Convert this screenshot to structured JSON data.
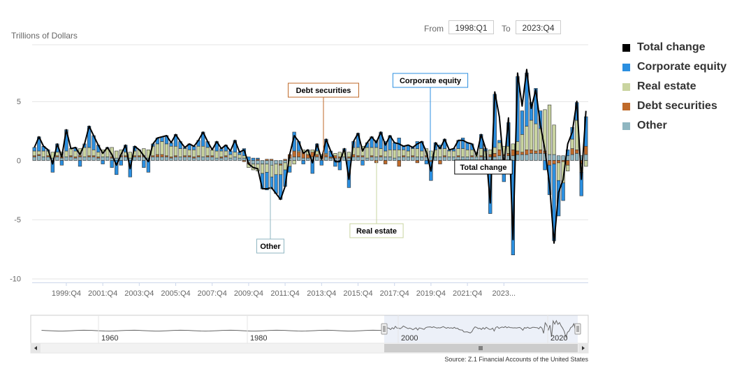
{
  "range_selector": {
    "from_label": "From",
    "from_value": "1998:Q1",
    "to_label": "To",
    "to_value": "2023:Q4"
  },
  "legend": [
    {
      "name": "Total change",
      "color": "#000000"
    },
    {
      "name": "Corporate equity",
      "color": "#2b8fe0"
    },
    {
      "name": "Real estate",
      "color": "#c9d4a0"
    },
    {
      "name": "Debt securities",
      "color": "#bf6a2a"
    },
    {
      "name": "Other",
      "color": "#8fb6c1"
    }
  ],
  "source": "Source: Z.1 Financial Accounts of the United States",
  "chart_data": {
    "type": "bar",
    "stacked": true,
    "ylabel": "Trillions of Dollars",
    "ylim": [
      -10,
      10
    ],
    "y_ticks": [
      5,
      0,
      -5,
      -10
    ],
    "x_tick_labels": [
      "1999:Q4",
      "2001:Q4",
      "2003:Q4",
      "2005:Q4",
      "2007:Q4",
      "2009:Q4",
      "2011:Q4",
      "2013:Q4",
      "2015:Q4",
      "2017:Q4",
      "2019:Q4",
      "2021:Q4",
      "2023..."
    ],
    "x_start": "1998:Q1",
    "x_end": "2023:Q4",
    "series_order": [
      "Other",
      "Debt securities",
      "Real estate",
      "Corporate equity"
    ],
    "series": [
      {
        "name": "Corporate equity",
        "values": [
          0.3,
          1.2,
          0.4,
          0.1,
          -1.0,
          0.7,
          -0.4,
          1.8,
          0.0,
          0.3,
          -0.5,
          0.3,
          1.8,
          1.2,
          0.6,
          -0.3,
          0.1,
          -0.6,
          -1.2,
          -0.4,
          0.6,
          -1.4,
          0.4,
          0.0,
          -0.6,
          -1.0,
          0.2,
          0.5,
          0.4,
          0.7,
          0.3,
          1.0,
          0.6,
          0.1,
          0.5,
          0.3,
          0.5,
          1.2,
          0.5,
          0.0,
          0.8,
          0.2,
          0.5,
          0.3,
          1.0,
          0.2,
          0.6,
          0.3,
          0.2,
          0.1,
          -1.3,
          -1.5,
          -1.0,
          -1.6,
          -2.1,
          -1.4,
          -0.5,
          1.6,
          0.8,
          -0.3,
          0.1,
          -1.1,
          0.6,
          -0.4,
          1.2,
          0.5,
          -0.5,
          -0.8,
          0.2,
          -2.3,
          0.5,
          1.2,
          -0.4,
          0.4,
          0.9,
          0.6,
          1.4,
          0.8,
          1.2,
          0.6,
          1.0,
          0.3,
          0.5,
          0.1,
          0.6,
          0.8,
          -0.3,
          -1.6,
          0.6,
          0.3,
          0.8,
          0.1,
          0.2,
          0.7,
          0.9,
          0.6,
          0.5,
          -0.3,
          1.2,
          0.2,
          -4.5,
          4.5,
          0.2,
          -1.8,
          2.0,
          -8.0,
          5.5,
          2.0,
          4.5,
          1.5,
          3.0,
          1.5,
          -0.8,
          -2.5,
          -6.5,
          -3.0,
          -1.5,
          0.5,
          1.0,
          1.5,
          -2.0,
          2.5
        ],
        "color": "#2b8fe0"
      },
      {
        "name": "Real estate",
        "values": [
          0.4,
          0.3,
          0.5,
          0.4,
          0.5,
          0.3,
          0.4,
          0.5,
          0.6,
          0.5,
          0.6,
          0.8,
          0.7,
          0.5,
          0.4,
          0.6,
          0.7,
          0.8,
          0.6,
          0.5,
          0.3,
          0.5,
          0.4,
          0.5,
          0.6,
          0.7,
          0.8,
          0.9,
          1.1,
          1.0,
          0.9,
          0.8,
          0.7,
          0.6,
          0.5,
          0.6,
          0.8,
          0.9,
          0.7,
          0.5,
          0.6,
          0.5,
          0.4,
          0.3,
          0.4,
          0.3,
          0.2,
          -0.3,
          -0.5,
          -0.6,
          -0.8,
          -0.7,
          -1.0,
          -0.9,
          -0.8,
          -0.6,
          -0.5,
          -0.3,
          0.1,
          0.2,
          0.3,
          0.2,
          0.3,
          0.2,
          0.1,
          0.0,
          0.2,
          0.4,
          0.5,
          0.4,
          0.6,
          0.7,
          0.8,
          0.9,
          0.7,
          0.8,
          0.6,
          0.5,
          0.6,
          0.7,
          0.6,
          0.5,
          0.5,
          0.6,
          0.7,
          0.5,
          0.6,
          0.5,
          0.6,
          0.7,
          0.6,
          0.5,
          0.5,
          0.6,
          0.7,
          0.6,
          0.5,
          0.4,
          0.6,
          0.5,
          0.4,
          0.5,
          0.6,
          0.7,
          0.6,
          0.5,
          0.8,
          1.5,
          2.0,
          2.5,
          2.3,
          1.8,
          3.5,
          4.2,
          2.5,
          -1.5,
          -1.8,
          -0.5,
          0.8,
          2.5,
          -0.7,
          -0.5
        ],
        "color": "#c9d4a0"
      },
      {
        "name": "Debt securities",
        "values": [
          0.1,
          0.1,
          0.0,
          0.1,
          0.0,
          0.1,
          0.1,
          0.0,
          0.1,
          0.1,
          0.1,
          0.0,
          0.1,
          0.1,
          0.1,
          0.0,
          0.0,
          0.1,
          0.0,
          0.1,
          0.1,
          0.0,
          0.1,
          0.1,
          0.1,
          0.0,
          0.1,
          0.2,
          0.2,
          0.1,
          0.1,
          0.1,
          0.0,
          0.1,
          0.1,
          0.1,
          0.1,
          0.0,
          0.1,
          0.1,
          0.0,
          0.1,
          0.1,
          0.0,
          0.0,
          0.0,
          -0.1,
          -0.1,
          0.0,
          0.1,
          0.0,
          0.1,
          0.1,
          0.0,
          -0.1,
          0.1,
          0.3,
          0.5,
          0.4,
          0.5,
          0.3,
          0.4,
          0.2,
          0.1,
          0.2,
          0.1,
          0.2,
          0.1,
          0.0,
          0.1,
          0.2,
          0.1,
          0.1,
          0.0,
          0.1,
          -0.2,
          0.1,
          -0.3,
          0.0,
          0.0,
          -0.5,
          0.1,
          0.0,
          0.1,
          -0.2,
          0.0,
          0.1,
          -0.1,
          0.0,
          -0.3,
          0.1,
          0.0,
          0.0,
          0.1,
          -0.2,
          0.0,
          0.1,
          0.0,
          0.1,
          0.0,
          0.2,
          0.3,
          0.5,
          0.1,
          0.2,
          0.5,
          0.3,
          0.2,
          0.4,
          0.3,
          0.2,
          0.3,
          0.2,
          -0.4,
          -0.3,
          -0.2,
          -0.1,
          -0.4,
          0.5,
          0.3,
          -0.3,
          0.7
        ],
        "color": "#bf6a2a"
      },
      {
        "name": "Other",
        "values": [
          0.3,
          0.4,
          0.3,
          0.3,
          0.2,
          0.3,
          0.2,
          0.3,
          0.3,
          0.2,
          0.3,
          0.3,
          0.3,
          0.3,
          0.2,
          0.3,
          0.3,
          0.2,
          0.2,
          0.3,
          0.3,
          0.2,
          0.3,
          0.3,
          0.3,
          0.2,
          0.3,
          0.3,
          0.3,
          0.3,
          0.2,
          0.3,
          0.3,
          0.3,
          0.3,
          0.2,
          0.3,
          0.3,
          0.3,
          0.3,
          0.2,
          0.2,
          0.3,
          0.2,
          0.3,
          0.2,
          0.2,
          -0.2,
          -0.3,
          -0.3,
          -0.3,
          -0.3,
          -0.4,
          -0.3,
          -0.3,
          -0.2,
          0.2,
          0.3,
          0.3,
          0.2,
          0.2,
          0.3,
          0.3,
          0.2,
          0.3,
          0.2,
          0.2,
          0.2,
          0.3,
          0.2,
          0.3,
          0.3,
          0.3,
          0.2,
          0.3,
          0.3,
          0.3,
          0.3,
          0.3,
          0.2,
          0.3,
          0.3,
          0.3,
          0.3,
          0.3,
          0.3,
          0.3,
          0.3,
          0.3,
          0.3,
          0.3,
          0.3,
          0.3,
          0.3,
          0.3,
          0.3,
          0.3,
          0.3,
          0.3,
          0.3,
          0.3,
          0.3,
          0.4,
          0.4,
          0.4,
          0.4,
          0.5,
          0.5,
          0.5,
          0.6,
          0.6,
          0.6,
          0.6,
          0.5,
          0.5,
          0.4,
          0.4,
          0.4,
          0.5,
          0.6,
          0.4,
          0.5
        ],
        "color": "#8fb6c1"
      },
      {
        "name": "Total change",
        "type": "line",
        "values": [
          1.1,
          2.0,
          1.2,
          0.9,
          -0.3,
          1.4,
          0.3,
          2.6,
          1.0,
          1.1,
          0.5,
          1.4,
          2.9,
          2.1,
          1.3,
          0.6,
          1.1,
          0.5,
          -0.4,
          0.5,
          1.3,
          -0.7,
          1.2,
          0.9,
          0.4,
          -0.1,
          1.4,
          1.9,
          2.0,
          2.1,
          1.5,
          2.2,
          1.6,
          1.1,
          1.4,
          1.2,
          1.7,
          2.4,
          1.6,
          0.9,
          1.6,
          1.0,
          1.3,
          0.8,
          1.7,
          0.7,
          0.9,
          -0.3,
          -0.6,
          -0.7,
          -2.4,
          -2.4,
          -2.3,
          -2.8,
          -3.3,
          -2.2,
          0.5,
          2.1,
          1.6,
          0.6,
          0.9,
          -0.2,
          1.4,
          0.1,
          1.8,
          0.8,
          -0.1,
          -0.1,
          1.0,
          -1.6,
          1.6,
          2.3,
          0.8,
          1.5,
          2.0,
          1.5,
          2.4,
          1.3,
          2.1,
          1.5,
          1.4,
          1.2,
          1.3,
          1.1,
          1.4,
          1.6,
          0.7,
          -0.9,
          1.5,
          1.0,
          1.8,
          0.9,
          1.0,
          1.7,
          1.7,
          1.5,
          1.4,
          0.4,
          2.2,
          1.0,
          -3.6,
          5.8,
          3.7,
          -0.6,
          3.6,
          -6.7,
          7.4,
          4.6,
          7.7,
          4.4,
          6.0,
          3.0,
          0.9,
          -2.0,
          -7.0,
          -2.7,
          -1.6,
          1.4,
          2.4,
          5.0,
          -1.6,
          4.2
        ],
        "color": "#000000"
      }
    ],
    "annotations": [
      {
        "text": "Debt securities",
        "series": "Debt securities",
        "index": 55
      },
      {
        "text": "Corporate equity",
        "series": "Corporate equity",
        "index": 80
      },
      {
        "text": "Total change",
        "series": "Total change",
        "index": 93
      },
      {
        "text": "Real estate",
        "series": "Real estate",
        "index": 70
      },
      {
        "text": "Other",
        "series": "Other",
        "index": 46
      }
    ],
    "navigator": {
      "tick_labels": [
        "1960",
        "1980",
        "2000",
        "2020"
      ]
    }
  }
}
